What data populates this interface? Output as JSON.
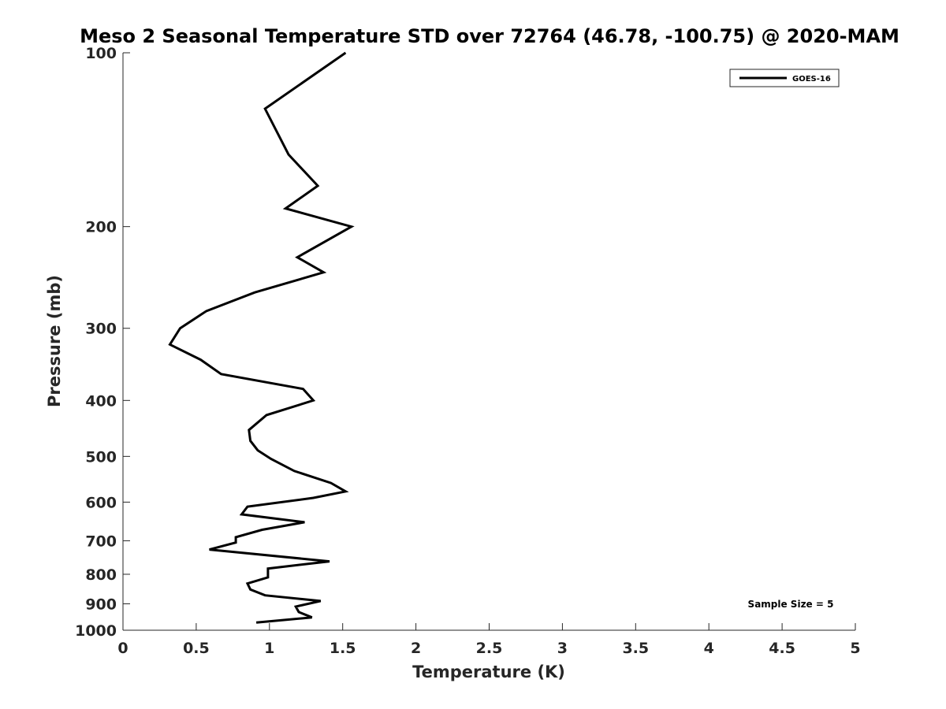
{
  "chart_data": {
    "type": "line",
    "title": "Meso 2 Seasonal Temperature STD over 72764 (46.78, -100.75) @ 2020-MAM",
    "xlabel": "Temperature (K)",
    "ylabel": "Pressure (mb)",
    "xlim": [
      0,
      5
    ],
    "ylim": [
      100,
      1000
    ],
    "y_scale": "log",
    "y_reversed": true,
    "x_ticks": [
      "0",
      "0.5",
      "1",
      "1.5",
      "2",
      "2.5",
      "3",
      "3.5",
      "4",
      "4.5",
      "5"
    ],
    "y_ticks": [
      "100",
      "200",
      "300",
      "400",
      "500",
      "600",
      "700",
      "800",
      "900",
      "1000"
    ],
    "grid": false,
    "legend_position": "top-right",
    "annotation": "Sample Size = 5",
    "series": [
      {
        "name": "GOES-16",
        "color": "#000000",
        "points": [
          [
            1.52,
            100
          ],
          [
            0.97,
            125
          ],
          [
            1.13,
            150
          ],
          [
            1.33,
            170
          ],
          [
            1.11,
            186
          ],
          [
            1.56,
            200
          ],
          [
            1.19,
            226
          ],
          [
            1.37,
            240
          ],
          [
            0.9,
            260
          ],
          [
            0.57,
            280
          ],
          [
            0.39,
            300
          ],
          [
            0.32,
            320
          ],
          [
            0.53,
            340
          ],
          [
            0.67,
            360
          ],
          [
            1.23,
            382
          ],
          [
            1.3,
            400
          ],
          [
            0.98,
            424
          ],
          [
            0.86,
            450
          ],
          [
            0.87,
            470
          ],
          [
            0.92,
            488
          ],
          [
            1.01,
            505
          ],
          [
            1.17,
            530
          ],
          [
            1.42,
            556
          ],
          [
            1.52,
            575
          ],
          [
            1.3,
            590
          ],
          [
            0.85,
            611
          ],
          [
            0.81,
            630
          ],
          [
            1.24,
            650
          ],
          [
            0.95,
            670
          ],
          [
            0.77,
            690
          ],
          [
            0.77,
            705
          ],
          [
            0.59,
            725
          ],
          [
            1.41,
            760
          ],
          [
            0.99,
            782
          ],
          [
            0.99,
            810
          ],
          [
            0.85,
            830
          ],
          [
            0.87,
            850
          ],
          [
            0.97,
            870
          ],
          [
            1.35,
            890
          ],
          [
            1.18,
            910
          ],
          [
            1.2,
            930
          ],
          [
            1.29,
            950
          ],
          [
            0.91,
            970
          ]
        ]
      }
    ]
  }
}
